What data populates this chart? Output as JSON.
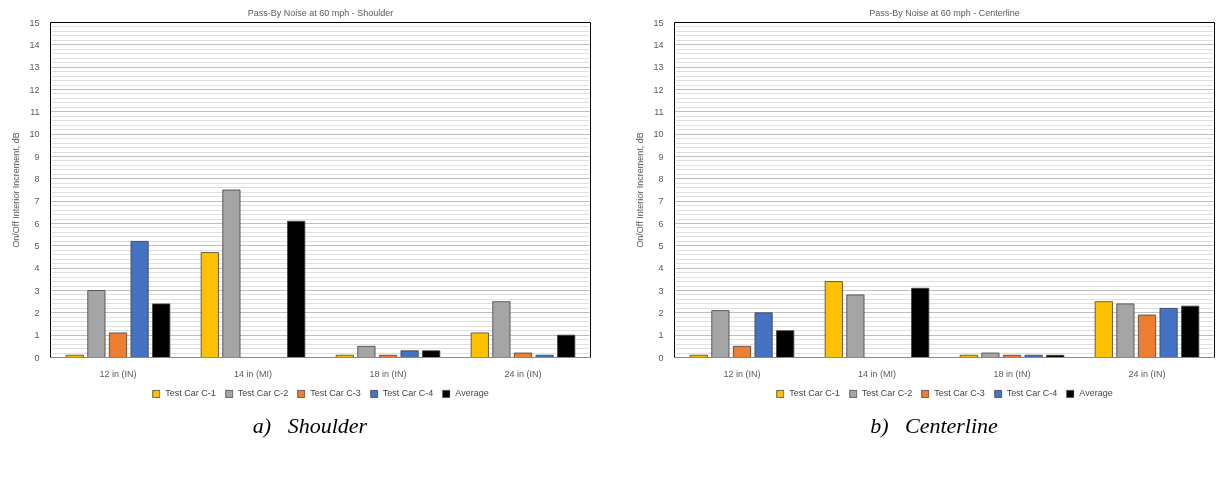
{
  "chart_data": [
    {
      "type": "bar",
      "title": "Pass-By Noise at 60 mph - Shoulder",
      "ylabel": "On/Off Interior Increment, dB",
      "categories": [
        "12 in (IN)",
        "14 in (MI)",
        "18 in (IN)",
        "24 in (IN)"
      ],
      "series": [
        {
          "name": "Test Car C-1",
          "color": "#ffc000",
          "values": [
            0.1,
            4.7,
            0.1,
            1.1
          ]
        },
        {
          "name": "Test Car C-2",
          "color": "#a5a5a5",
          "values": [
            3.0,
            7.5,
            0.5,
            2.5
          ]
        },
        {
          "name": "Test Car C-3",
          "color": "#ed7d31",
          "values": [
            1.1,
            null,
            0.1,
            0.2
          ]
        },
        {
          "name": "Test Car C-4",
          "color": "#4472c4",
          "values": [
            5.2,
            null,
            0.3,
            0.1
          ]
        },
        {
          "name": "Average",
          "color": "#000000",
          "values": [
            2.4,
            6.1,
            0.3,
            1.0
          ]
        }
      ],
      "ylim": [
        0,
        15
      ],
      "yticks": [
        0,
        1,
        2,
        3,
        4,
        5,
        6,
        7,
        8,
        9,
        10,
        11,
        12,
        13,
        14,
        15
      ],
      "grid": "y",
      "legend": "bottom",
      "annotations": [
        "a)   Shoulder"
      ]
    },
    {
      "type": "bar",
      "title": "Pass-By Noise at 60 mph - Centerline",
      "ylabel": "On/Off Interior Increment, dB",
      "categories": [
        "12 in (IN)",
        "14 in (MI)",
        "18 in (IN)",
        "24 in (IN)"
      ],
      "series": [
        {
          "name": "Test Car C-1",
          "color": "#ffc000",
          "values": [
            0.1,
            3.4,
            0.1,
            2.5
          ]
        },
        {
          "name": "Test Car C-2",
          "color": "#a5a5a5",
          "values": [
            2.1,
            2.8,
            0.2,
            2.4
          ]
        },
        {
          "name": "Test Car C-3",
          "color": "#ed7d31",
          "values": [
            0.5,
            null,
            0.1,
            1.9
          ]
        },
        {
          "name": "Test Car C-4",
          "color": "#4472c4",
          "values": [
            2.0,
            null,
            0.1,
            2.2
          ]
        },
        {
          "name": "Average",
          "color": "#000000",
          "values": [
            1.2,
            3.1,
            0.1,
            2.3
          ]
        }
      ],
      "ylim": [
        0,
        15
      ],
      "yticks": [
        0,
        1,
        2,
        3,
        4,
        5,
        6,
        7,
        8,
        9,
        10,
        11,
        12,
        13,
        14,
        15
      ],
      "grid": "y",
      "legend": "bottom",
      "annotations": [
        "b)   Centerline"
      ]
    }
  ]
}
